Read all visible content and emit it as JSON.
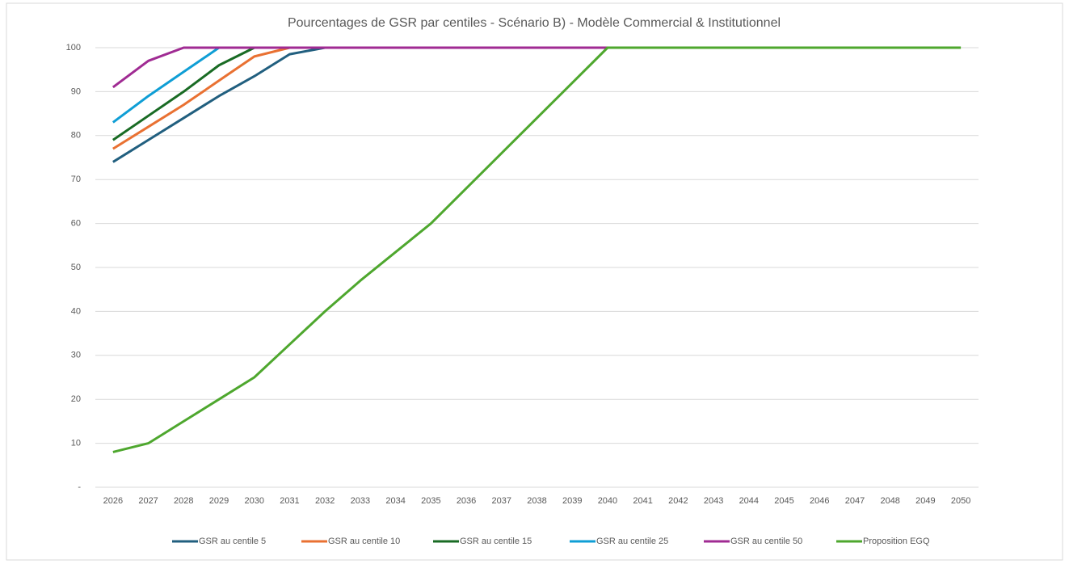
{
  "chart_data": {
    "type": "line",
    "title": "Pourcentages de GSR par centiles - Scénario B) - Modèle Commercial & Institutionnel",
    "categories": [
      "2026",
      "2027",
      "2028",
      "2029",
      "2030",
      "2031",
      "2032",
      "2033",
      "2034",
      "2035",
      "2036",
      "2037",
      "2038",
      "2039",
      "2040",
      "2041",
      "2042",
      "2043",
      "2044",
      "2045",
      "2046",
      "2047",
      "2048",
      "2049",
      "2050"
    ],
    "series": [
      {
        "name": "GSR au centile 5",
        "color": "#215f7f",
        "values": [
          74,
          79,
          84,
          89,
          93.5,
          98.5,
          100,
          100,
          100,
          100,
          100,
          100,
          100,
          100,
          100,
          null,
          null,
          null,
          null,
          null,
          null,
          null,
          null,
          null,
          null
        ]
      },
      {
        "name": "GSR au centile 10",
        "color": "#e97132",
        "values": [
          77,
          82,
          87,
          92.5,
          98,
          100,
          100,
          100,
          100,
          100,
          100,
          100,
          100,
          100,
          100,
          null,
          null,
          null,
          null,
          null,
          null,
          null,
          null,
          null,
          null
        ]
      },
      {
        "name": "GSR au centile 15",
        "color": "#196b24",
        "values": [
          79,
          84.5,
          90,
          96,
          100,
          100,
          100,
          100,
          100,
          100,
          100,
          100,
          100,
          100,
          100,
          null,
          null,
          null,
          null,
          null,
          null,
          null,
          null,
          null,
          null
        ]
      },
      {
        "name": "GSR au centile 25",
        "color": "#0f9ed5",
        "values": [
          83,
          89,
          94.5,
          100,
          100,
          100,
          100,
          100,
          100,
          100,
          100,
          100,
          100,
          100,
          100,
          null,
          null,
          null,
          null,
          null,
          null,
          null,
          null,
          null,
          null
        ]
      },
      {
        "name": "GSR au centile 50",
        "color": "#a02b93",
        "values": [
          91,
          97,
          100,
          100,
          100,
          100,
          100,
          100,
          100,
          100,
          100,
          100,
          100,
          100,
          100,
          null,
          null,
          null,
          null,
          null,
          null,
          null,
          null,
          null,
          null
        ]
      },
      {
        "name": "Proposition EGQ",
        "color": "#4ea72e",
        "values": [
          8,
          10,
          15,
          20,
          25,
          32.5,
          40,
          47,
          53.5,
          60,
          68,
          76,
          84,
          92,
          100,
          100,
          100,
          100,
          100,
          100,
          100,
          100,
          100,
          100,
          100
        ]
      }
    ],
    "ylim": [
      0,
      100
    ],
    "yticks": [
      {
        "value": 0,
        "label": "-"
      },
      10,
      20,
      30,
      40,
      50,
      60,
      70,
      80,
      90,
      100
    ],
    "grid": true,
    "legend": "bottom"
  }
}
